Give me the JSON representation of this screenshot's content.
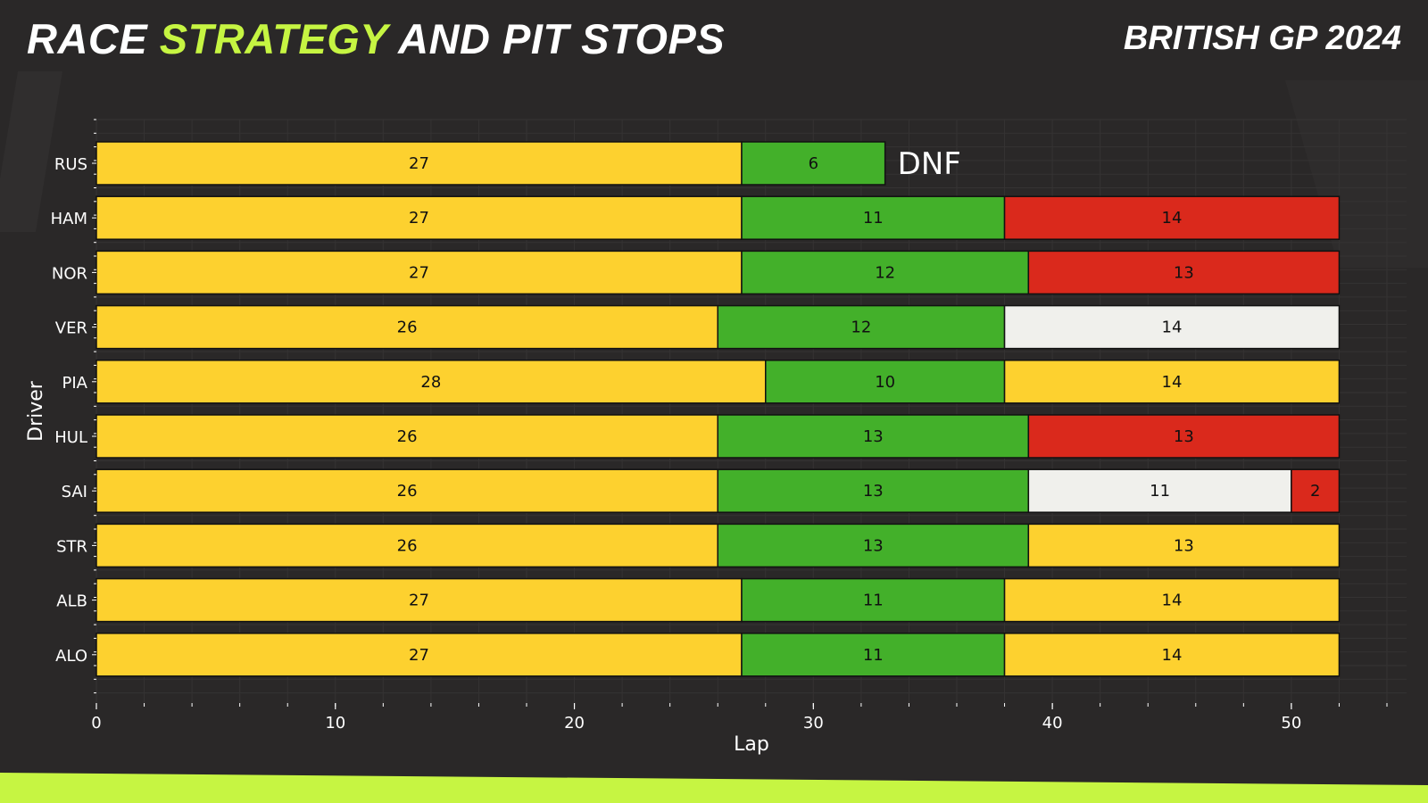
{
  "header": {
    "title_part1": "RACE ",
    "title_accent": "STRATEGY",
    "title_part2": " AND PIT STOPS",
    "event": "BRITISH GP 2024"
  },
  "colors": {
    "background": "#2a2828",
    "accent": "#c6f542",
    "medium": "#fdd12f",
    "hard": "#f0f0ec",
    "soft": "#da291c",
    "intermediate": "#43b02a"
  },
  "chart_data": {
    "type": "bar",
    "orientation": "horizontal-stacked",
    "xlabel": "Lap",
    "ylabel": "Driver",
    "xlim": [
      0,
      54
    ],
    "xticks": [
      0,
      10,
      20,
      30,
      40,
      50
    ],
    "grid": true,
    "drivers": [
      {
        "name": "RUS",
        "status": "DNF",
        "stints": [
          {
            "compound": "medium",
            "laps": 27
          },
          {
            "compound": "intermediate",
            "laps": 6
          }
        ]
      },
      {
        "name": "HAM",
        "status": "",
        "stints": [
          {
            "compound": "medium",
            "laps": 27
          },
          {
            "compound": "intermediate",
            "laps": 11
          },
          {
            "compound": "soft",
            "laps": 14
          }
        ]
      },
      {
        "name": "NOR",
        "status": "",
        "stints": [
          {
            "compound": "medium",
            "laps": 27
          },
          {
            "compound": "intermediate",
            "laps": 12
          },
          {
            "compound": "soft",
            "laps": 13
          }
        ]
      },
      {
        "name": "VER",
        "status": "",
        "stints": [
          {
            "compound": "medium",
            "laps": 26
          },
          {
            "compound": "intermediate",
            "laps": 12
          },
          {
            "compound": "hard",
            "laps": 14
          }
        ]
      },
      {
        "name": "PIA",
        "status": "",
        "stints": [
          {
            "compound": "medium",
            "laps": 28
          },
          {
            "compound": "intermediate",
            "laps": 10
          },
          {
            "compound": "medium",
            "laps": 14
          }
        ]
      },
      {
        "name": "HUL",
        "status": "",
        "stints": [
          {
            "compound": "medium",
            "laps": 26
          },
          {
            "compound": "intermediate",
            "laps": 13
          },
          {
            "compound": "soft",
            "laps": 13
          }
        ]
      },
      {
        "name": "SAI",
        "status": "",
        "stints": [
          {
            "compound": "medium",
            "laps": 26
          },
          {
            "compound": "intermediate",
            "laps": 13
          },
          {
            "compound": "hard",
            "laps": 11
          },
          {
            "compound": "soft",
            "laps": 2
          }
        ]
      },
      {
        "name": "STR",
        "status": "",
        "stints": [
          {
            "compound": "medium",
            "laps": 26
          },
          {
            "compound": "intermediate",
            "laps": 13
          },
          {
            "compound": "medium",
            "laps": 13
          }
        ]
      },
      {
        "name": "ALB",
        "status": "",
        "stints": [
          {
            "compound": "medium",
            "laps": 27
          },
          {
            "compound": "intermediate",
            "laps": 11
          },
          {
            "compound": "medium",
            "laps": 14
          }
        ]
      },
      {
        "name": "ALO",
        "status": "",
        "stints": [
          {
            "compound": "medium",
            "laps": 27
          },
          {
            "compound": "intermediate",
            "laps": 11
          },
          {
            "compound": "medium",
            "laps": 14
          }
        ]
      }
    ]
  }
}
